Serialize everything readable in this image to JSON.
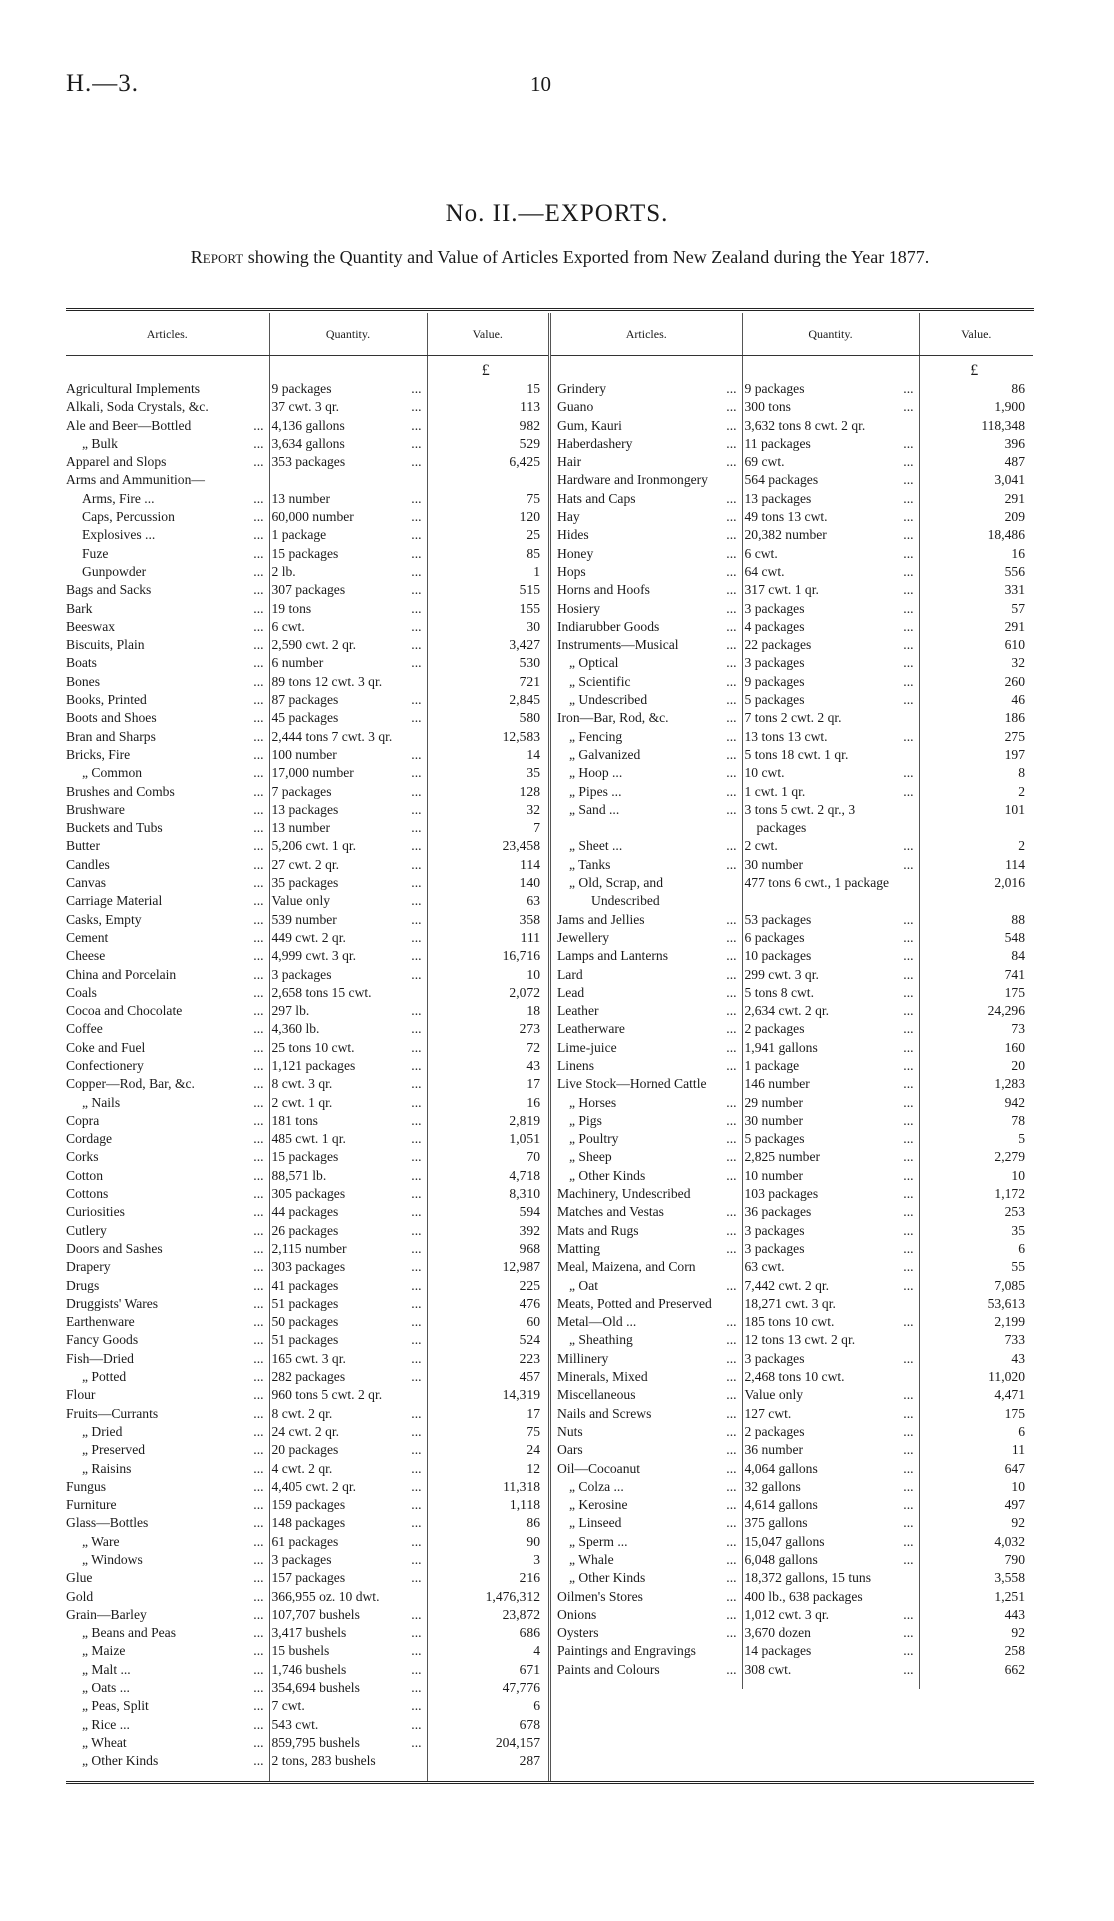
{
  "header": {
    "ref": "H.—3.",
    "page_number": "10"
  },
  "title": "No. II.—EXPORTS.",
  "subtitle_lead": "Report",
  "subtitle_rest": "showing the Quantity and Value of Articles Exported from New Zealand during the Year 1877.",
  "columns": {
    "articles": "Articles.",
    "quantity": "Quantity.",
    "value": "Value.",
    "currency": "£"
  },
  "left_rows": [
    {
      "article": "Agricultural Implements",
      "quantity": "9 packages",
      "value": "15"
    },
    {
      "article": "Alkali, Soda Crystals, &c.",
      "quantity": "37 cwt. 3 qr.",
      "value": "113"
    },
    {
      "article": "Ale and Beer—Bottled",
      "quantity": "4,136 gallons",
      "value": "982"
    },
    {
      "article": "„ Bulk",
      "quantity": "3,634 gallons",
      "value": "529",
      "ditto": true
    },
    {
      "article": "Apparel and Slops",
      "quantity": "353 packages",
      "value": "6,425"
    },
    {
      "article": "Arms and Ammunition—",
      "quantity": "",
      "value": ""
    },
    {
      "article": "Arms, Fire ...",
      "quantity": "13 number",
      "value": "75",
      "sub": true
    },
    {
      "article": "Caps, Percussion",
      "quantity": "60,000 number",
      "value": "120",
      "sub": true
    },
    {
      "article": "Explosives ...",
      "quantity": "1 package",
      "value": "25",
      "sub": true
    },
    {
      "article": "Fuze",
      "quantity": "15 packages",
      "value": "85",
      "sub": true
    },
    {
      "article": "Gunpowder",
      "quantity": "2 lb.",
      "value": "1",
      "sub": true
    },
    {
      "article": "Bags and Sacks",
      "quantity": "307 packages",
      "value": "515"
    },
    {
      "article": "Bark",
      "quantity": "19 tons",
      "value": "155"
    },
    {
      "article": "Beeswax",
      "quantity": "6 cwt.",
      "value": "30"
    },
    {
      "article": "Biscuits, Plain",
      "quantity": "2,590 cwt. 2 qr.",
      "value": "3,427"
    },
    {
      "article": "Boats",
      "quantity": "6 number",
      "value": "530"
    },
    {
      "article": "Bones",
      "quantity": "89 tons 12 cwt. 3 qr.",
      "value": "721"
    },
    {
      "article": "Books, Printed",
      "quantity": "87 packages",
      "value": "2,845"
    },
    {
      "article": "Boots and Shoes",
      "quantity": "45 packages",
      "value": "580"
    },
    {
      "article": "Bran and Sharps",
      "quantity": "2,444 tons 7 cwt. 3 qr.",
      "value": "12,583"
    },
    {
      "article": "Bricks, Fire",
      "quantity": "100 number",
      "value": "14"
    },
    {
      "article": "„ Common",
      "quantity": "17,000 number",
      "value": "35",
      "ditto": true
    },
    {
      "article": "Brushes and Combs",
      "quantity": "7 packages",
      "value": "128"
    },
    {
      "article": "Brushware",
      "quantity": "13 packages",
      "value": "32"
    },
    {
      "article": "Buckets and Tubs",
      "quantity": "13 number",
      "value": "7"
    },
    {
      "article": "Butter",
      "quantity": "5,206 cwt. 1 qr.",
      "value": "23,458"
    },
    {
      "article": "Candles",
      "quantity": "27 cwt. 2 qr.",
      "value": "114"
    },
    {
      "article": "Canvas",
      "quantity": "35 packages",
      "value": "140"
    },
    {
      "article": "Carriage Material",
      "quantity": "Value only",
      "value": "63"
    },
    {
      "article": "Casks, Empty",
      "quantity": "539 number",
      "value": "358"
    },
    {
      "article": "Cement",
      "quantity": "449 cwt. 2 qr.",
      "value": "111"
    },
    {
      "article": "Cheese",
      "quantity": "4,999 cwt. 3 qr.",
      "value": "16,716"
    },
    {
      "article": "China and Porcelain",
      "quantity": "3 packages",
      "value": "10"
    },
    {
      "article": "Coals",
      "quantity": "2,658 tons 15 cwt.",
      "value": "2,072"
    },
    {
      "article": "Cocoa and Chocolate",
      "quantity": "297 lb.",
      "value": "18"
    },
    {
      "article": "Coffee",
      "quantity": "4,360 lb.",
      "value": "273"
    },
    {
      "article": "Coke and Fuel",
      "quantity": "25 tons 10 cwt.",
      "value": "72"
    },
    {
      "article": "Confectionery",
      "quantity": "1,121 packages",
      "value": "43"
    },
    {
      "article": "Copper—Rod, Bar, &c.",
      "quantity": "8 cwt. 3 qr.",
      "value": "17"
    },
    {
      "article": "„ Nails",
      "quantity": "2 cwt. 1 qr.",
      "value": "16",
      "ditto": true
    },
    {
      "article": "Copra",
      "quantity": "181 tons",
      "value": "2,819"
    },
    {
      "article": "Cordage",
      "quantity": "485 cwt. 1 qr.",
      "value": "1,051"
    },
    {
      "article": "Corks",
      "quantity": "15 packages",
      "value": "70"
    },
    {
      "article": "Cotton",
      "quantity": "88,571 lb.",
      "value": "4,718"
    },
    {
      "article": "Cottons",
      "quantity": "305 packages",
      "value": "8,310"
    },
    {
      "article": "Curiosities",
      "quantity": "44 packages",
      "value": "594"
    },
    {
      "article": "Cutlery",
      "quantity": "26 packages",
      "value": "392"
    },
    {
      "article": "Doors and Sashes",
      "quantity": "2,115 number",
      "value": "968"
    },
    {
      "article": "Drapery",
      "quantity": "303 packages",
      "value": "12,987"
    },
    {
      "article": "Drugs",
      "quantity": "41 packages",
      "value": "225"
    },
    {
      "article": "Druggists' Wares",
      "quantity": "51 packages",
      "value": "476"
    },
    {
      "article": "Earthenware",
      "quantity": "50 packages",
      "value": "60"
    },
    {
      "article": "Fancy Goods",
      "quantity": "51 packages",
      "value": "524"
    },
    {
      "article": "Fish—Dried",
      "quantity": "165 cwt. 3 qr.",
      "value": "223"
    },
    {
      "article": "„ Potted",
      "quantity": "282 packages",
      "value": "457",
      "ditto": true
    },
    {
      "article": "Flour",
      "quantity": "960 tons 5 cwt. 2 qr.",
      "value": "14,319"
    },
    {
      "article": "Fruits—Currants",
      "quantity": "8 cwt. 2 qr.",
      "value": "17"
    },
    {
      "article": "„ Dried",
      "quantity": "24 cwt. 2 qr.",
      "value": "75",
      "ditto": true
    },
    {
      "article": "„ Preserved",
      "quantity": "20 packages",
      "value": "24",
      "ditto": true
    },
    {
      "article": "„ Raisins",
      "quantity": "4 cwt. 2 qr.",
      "value": "12",
      "ditto": true
    },
    {
      "article": "Fungus",
      "quantity": "4,405 cwt. 2 qr.",
      "value": "11,318"
    },
    {
      "article": "Furniture",
      "quantity": "159 packages",
      "value": "1,118"
    },
    {
      "article": "Glass—Bottles",
      "quantity": "148 packages",
      "value": "86"
    },
    {
      "article": "„ Ware",
      "quantity": "61 packages",
      "value": "90",
      "ditto": true
    },
    {
      "article": "„ Windows",
      "quantity": "3 packages",
      "value": "3",
      "ditto": true
    },
    {
      "article": "Glue",
      "quantity": "157 packages",
      "value": "216"
    },
    {
      "article": "Gold",
      "quantity": "366,955 oz. 10 dwt.",
      "value": "1,476,312"
    },
    {
      "article": "Grain—Barley",
      "quantity": "107,707 bushels",
      "value": "23,872"
    },
    {
      "article": "„ Beans and Peas",
      "quantity": "3,417 bushels",
      "value": "686",
      "ditto": true
    },
    {
      "article": "„ Maize",
      "quantity": "15 bushels",
      "value": "4",
      "ditto": true
    },
    {
      "article": "„ Malt ...",
      "quantity": "1,746 bushels",
      "value": "671",
      "ditto": true
    },
    {
      "article": "„ Oats ...",
      "quantity": "354,694 bushels",
      "value": "47,776",
      "ditto": true
    },
    {
      "article": "„ Peas, Split",
      "quantity": "7 cwt.",
      "value": "6",
      "ditto": true
    },
    {
      "article": "„ Rice ...",
      "quantity": "543 cwt.",
      "value": "678",
      "ditto": true
    },
    {
      "article": "„ Wheat",
      "quantity": "859,795 bushels",
      "value": "204,157",
      "ditto": true
    },
    {
      "article": "„ Other Kinds",
      "quantity": "2 tons, 283 bushels",
      "value": "287",
      "ditto": true
    }
  ],
  "right_rows": [
    {
      "article": "Grindery",
      "quantity": "9 packages",
      "value": "86"
    },
    {
      "article": "Guano",
      "quantity": "300 tons",
      "value": "1,900"
    },
    {
      "article": "Gum, Kauri",
      "quantity": "3,632 tons 8 cwt. 2 qr.",
      "value": "118,348"
    },
    {
      "article": "Haberdashery",
      "quantity": "11 packages",
      "value": "396"
    },
    {
      "article": "Hair",
      "quantity": "69 cwt.",
      "value": "487"
    },
    {
      "article": "Hardware and Ironmongery",
      "quantity": "564 packages",
      "value": "3,041"
    },
    {
      "article": "Hats and Caps",
      "quantity": "13 packages",
      "value": "291"
    },
    {
      "article": "Hay",
      "quantity": "49 tons 13 cwt.",
      "value": "209"
    },
    {
      "article": "Hides",
      "quantity": "20,382 number",
      "value": "18,486"
    },
    {
      "article": "Honey",
      "quantity": "6 cwt.",
      "value": "16"
    },
    {
      "article": "Hops",
      "quantity": "64 cwt.",
      "value": "556"
    },
    {
      "article": "Horns and Hoofs",
      "quantity": "317 cwt. 1 qr.",
      "value": "331"
    },
    {
      "article": "Hosiery",
      "quantity": "3 packages",
      "value": "57"
    },
    {
      "article": "Indiarubber Goods",
      "quantity": "4 packages",
      "value": "291"
    },
    {
      "article": "Instruments—Musical",
      "quantity": "22 packages",
      "value": "610"
    },
    {
      "article": "„ Optical",
      "quantity": "3 packages",
      "value": "32",
      "ditto": true
    },
    {
      "article": "„ Scientific",
      "quantity": "9 packages",
      "value": "260",
      "ditto": true
    },
    {
      "article": "„ Undescribed",
      "quantity": "5 packages",
      "value": "46",
      "ditto": true
    },
    {
      "article": "Iron—Bar, Rod, &c.",
      "quantity": "7 tons 2 cwt. 2 qr.",
      "value": "186"
    },
    {
      "article": "„ Fencing",
      "quantity": "13 tons 13 cwt.",
      "value": "275",
      "ditto": true
    },
    {
      "article": "„ Galvanized",
      "quantity": "5 tons 18 cwt. 1 qr.",
      "value": "197",
      "ditto": true
    },
    {
      "article": "„ Hoop ...",
      "quantity": "10 cwt.",
      "value": "8",
      "ditto": true
    },
    {
      "article": "„ Pipes ...",
      "quantity": "1 cwt. 1 qr.",
      "value": "2",
      "ditto": true
    },
    {
      "article": "„ Sand ...",
      "quantity": "3 tons 5 cwt. 2 qr., 3 packages",
      "value": "101",
      "ditto": true
    },
    {
      "article": "„ Sheet ...",
      "quantity": "2 cwt.",
      "value": "2",
      "ditto": true
    },
    {
      "article": "„ Tanks",
      "quantity": "30 number",
      "value": "114",
      "ditto": true
    },
    {
      "article": "„ Old, Scrap, and Undescribed",
      "quantity": "477 tons 6 cwt., 1 package",
      "value": "2,016",
      "ditto": true
    },
    {
      "article": "Jams and Jellies",
      "quantity": "53 packages",
      "value": "88"
    },
    {
      "article": "Jewellery",
      "quantity": "6 packages",
      "value": "548"
    },
    {
      "article": "Lamps and Lanterns",
      "quantity": "10 packages",
      "value": "84"
    },
    {
      "article": "Lard",
      "quantity": "299 cwt. 3 qr.",
      "value": "741"
    },
    {
      "article": "Lead",
      "quantity": "5 tons 8 cwt.",
      "value": "175"
    },
    {
      "article": "Leather",
      "quantity": "2,634 cwt. 2 qr.",
      "value": "24,296"
    },
    {
      "article": "Leatherware",
      "quantity": "2 packages",
      "value": "73"
    },
    {
      "article": "Lime-juice",
      "quantity": "1,941 gallons",
      "value": "160"
    },
    {
      "article": "Linens",
      "quantity": "1 package",
      "value": "20"
    },
    {
      "article": "Live Stock—Horned Cattle",
      "quantity": "146 number",
      "value": "1,283"
    },
    {
      "article": "„ Horses",
      "quantity": "29 number",
      "value": "942",
      "ditto": true
    },
    {
      "article": "„ Pigs",
      "quantity": "30 number",
      "value": "78",
      "ditto": true
    },
    {
      "article": "„ Poultry",
      "quantity": "5 packages",
      "value": "5",
      "ditto": true
    },
    {
      "article": "„ Sheep",
      "quantity": "2,825 number",
      "value": "2,279",
      "ditto": true
    },
    {
      "article": "„ Other Kinds",
      "quantity": "10 number",
      "value": "10",
      "ditto": true
    },
    {
      "article": "Machinery, Undescribed",
      "quantity": "103 packages",
      "value": "1,172"
    },
    {
      "article": "Matches and Vestas",
      "quantity": "36 packages",
      "value": "253"
    },
    {
      "article": "Mats and Rugs",
      "quantity": "3 packages",
      "value": "35"
    },
    {
      "article": "Matting",
      "quantity": "3 packages",
      "value": "6"
    },
    {
      "article": "Meal, Maizena, and Corn",
      "quantity": "63 cwt.",
      "value": "55"
    },
    {
      "article": "„ Oat",
      "quantity": "7,442 cwt. 2 qr.",
      "value": "7,085",
      "ditto": true
    },
    {
      "article": "Meats, Potted and Preserved",
      "quantity": "18,271 cwt. 3 qr.",
      "value": "53,613"
    },
    {
      "article": "Metal—Old ...",
      "quantity": "185 tons 10 cwt.",
      "value": "2,199"
    },
    {
      "article": "„ Sheathing",
      "quantity": "12 tons 13 cwt. 2 qr.",
      "value": "733",
      "ditto": true
    },
    {
      "article": "Millinery",
      "quantity": "3 packages",
      "value": "43"
    },
    {
      "article": "Minerals, Mixed",
      "quantity": "2,468 tons 10 cwt.",
      "value": "11,020"
    },
    {
      "article": "Miscellaneous",
      "quantity": "Value only",
      "value": "4,471"
    },
    {
      "article": "Nails and Screws",
      "quantity": "127 cwt.",
      "value": "175"
    },
    {
      "article": "Nuts",
      "quantity": "2 packages",
      "value": "6"
    },
    {
      "article": "Oars",
      "quantity": "36 number",
      "value": "11"
    },
    {
      "article": "Oil—Cocoanut",
      "quantity": "4,064 gallons",
      "value": "647"
    },
    {
      "article": "„ Colza ...",
      "quantity": "32 gallons",
      "value": "10",
      "ditto": true
    },
    {
      "article": "„ Kerosine",
      "quantity": "4,614 gallons",
      "value": "497",
      "ditto": true
    },
    {
      "article": "„ Linseed",
      "quantity": "375 gallons",
      "value": "92",
      "ditto": true
    },
    {
      "article": "„ Sperm ...",
      "quantity": "15,047 gallons",
      "value": "4,032",
      "ditto": true
    },
    {
      "article": "„ Whale",
      "quantity": "6,048 gallons",
      "value": "790",
      "ditto": true
    },
    {
      "article": "„ Other Kinds",
      "quantity": "18,372 gallons, 15 tuns",
      "value": "3,558",
      "ditto": true
    },
    {
      "article": "Oilmen's Stores",
      "quantity": "400 lb., 638 packages",
      "value": "1,251"
    },
    {
      "article": "Onions",
      "quantity": "1,012 cwt. 3 qr.",
      "value": "443"
    },
    {
      "article": "Oysters",
      "quantity": "3,670 dozen",
      "value": "92"
    },
    {
      "article": "Paintings and Engravings",
      "quantity": "14 packages",
      "value": "258"
    },
    {
      "article": "Paints and Colours",
      "quantity": "308 cwt.",
      "value": "662"
    }
  ]
}
